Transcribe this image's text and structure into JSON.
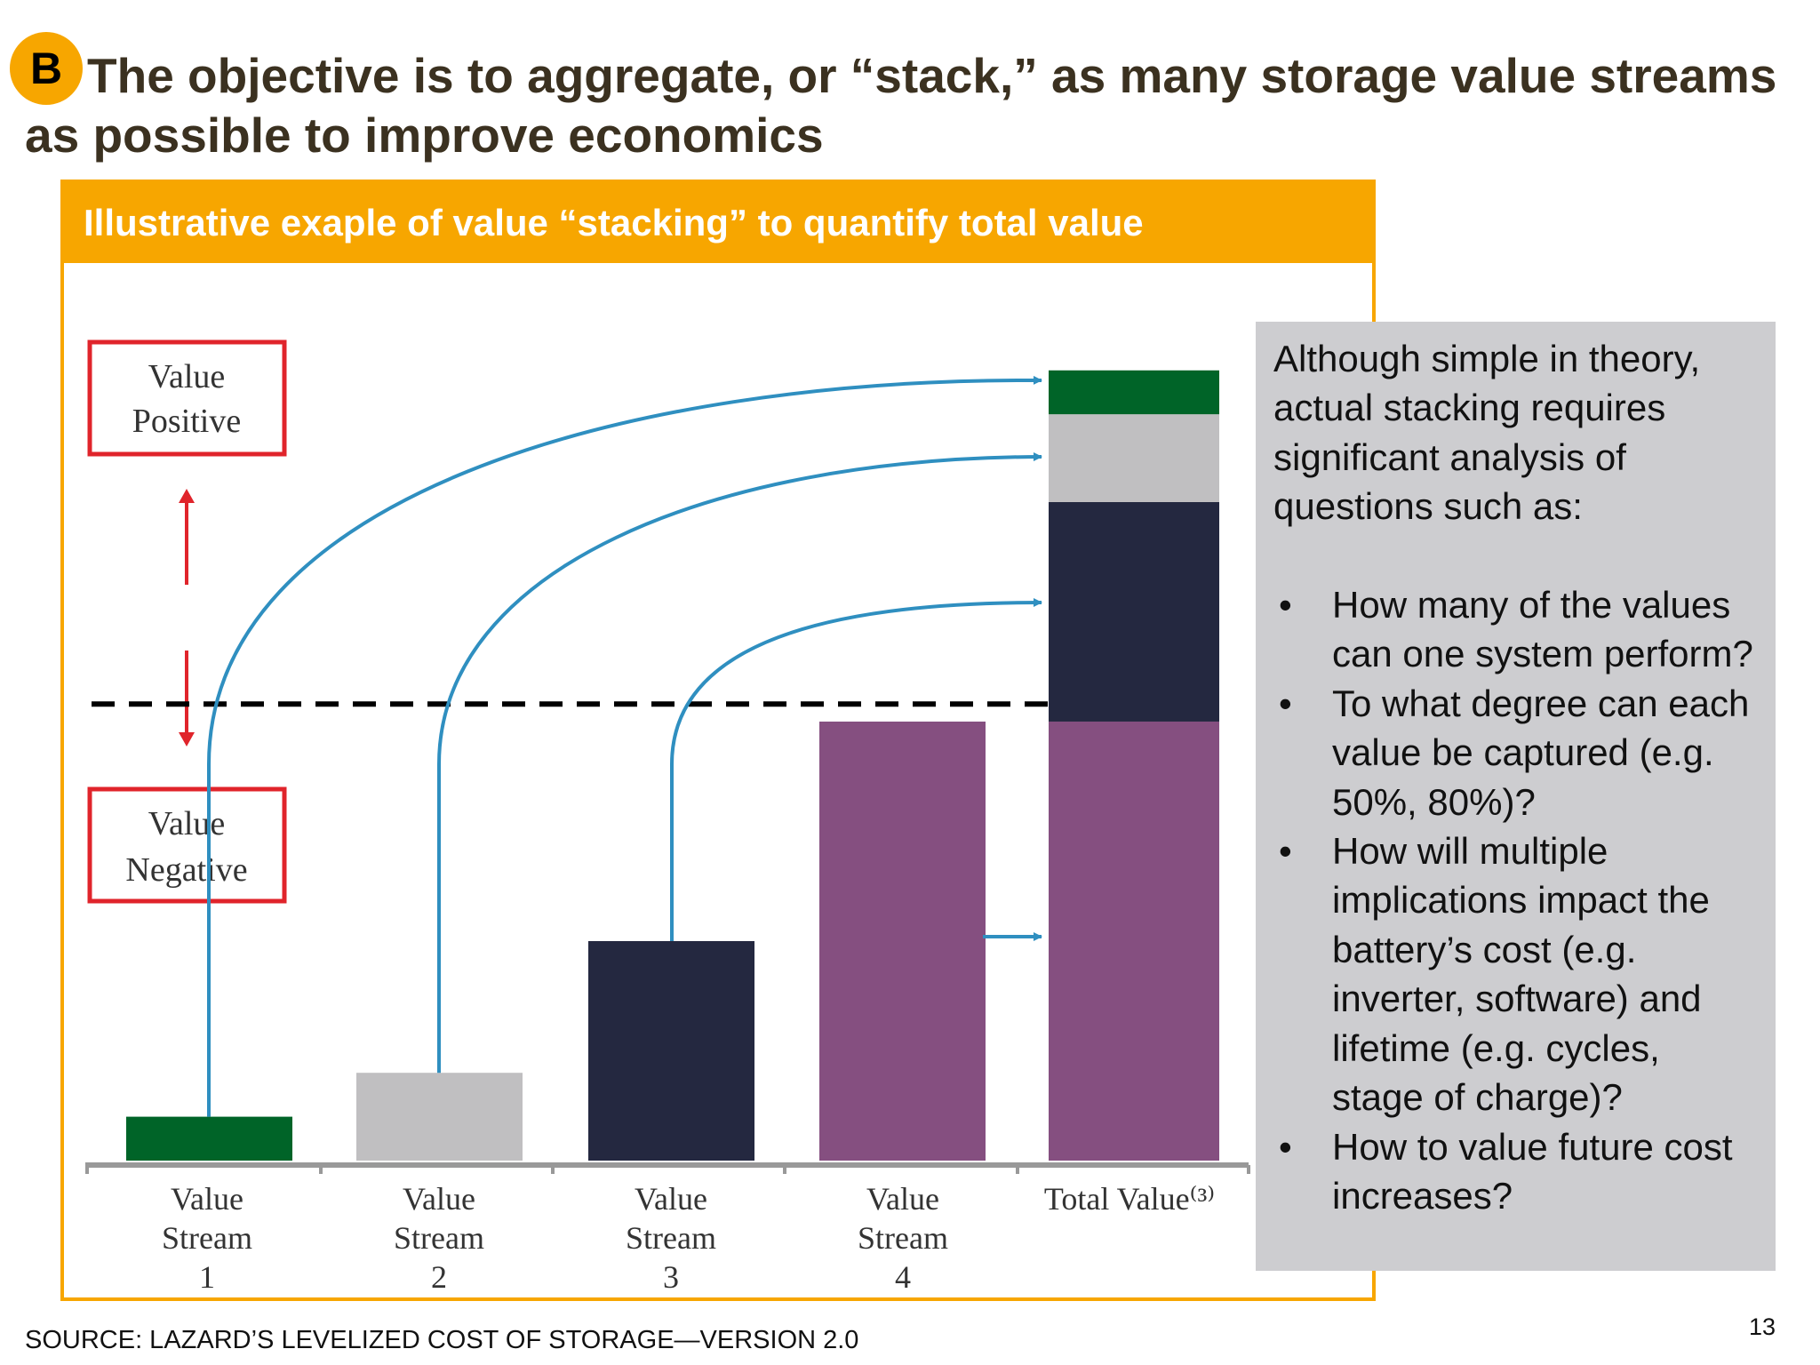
{
  "slide": {
    "badge": "B",
    "title": "The objective is to aggregate, or “stack,” as many storage value streams as possible to improve economics",
    "panel_header": "Illustrative exaple of value “stacking” to quantify total value",
    "value_positive": [
      "Value",
      "Positive"
    ],
    "value_negative": [
      "Value",
      "Negative"
    ],
    "source": "SOURCE: LAZARD’S LEVELIZED COST OF STORAGE—VERSION 2.0",
    "page_number": "13"
  },
  "note": {
    "intro": "Although simple in theory, actual stacking requires significant analysis of questions such as:",
    "bullet_symbol": "•",
    "bullets": [
      "How many of the values can one system perform?",
      "To what degree can each value be captured (e.g. 50%, 80%)?",
      "How will multiple implications impact the battery’s cost (e.g. inverter, software) and lifetime (e.g. cycles, stage of charge)?",
      "How to value future cost increases?"
    ]
  },
  "chart_data": {
    "type": "bar",
    "stacked_total": true,
    "categories": [
      [
        "Value",
        "Stream",
        "1"
      ],
      [
        "Value",
        "Stream",
        "2"
      ],
      [
        "Value",
        "Stream",
        "3"
      ],
      [
        "Value",
        "Stream",
        "4"
      ],
      [
        "Total Value⁽³⁾"
      ]
    ],
    "values": [
      1,
      2,
      5,
      10,
      18
    ],
    "stack_order_bottom_to_top": [
      3,
      2,
      1,
      0
    ],
    "colors": [
      "#006428",
      "#c0bfc1",
      "#242840",
      "#854f80"
    ],
    "threshold": 10.4,
    "ylim": [
      0,
      18.4
    ],
    "arrow_color": "#2f8fc0",
    "threshold_color": "#000000",
    "box_color": "#e0242b"
  }
}
